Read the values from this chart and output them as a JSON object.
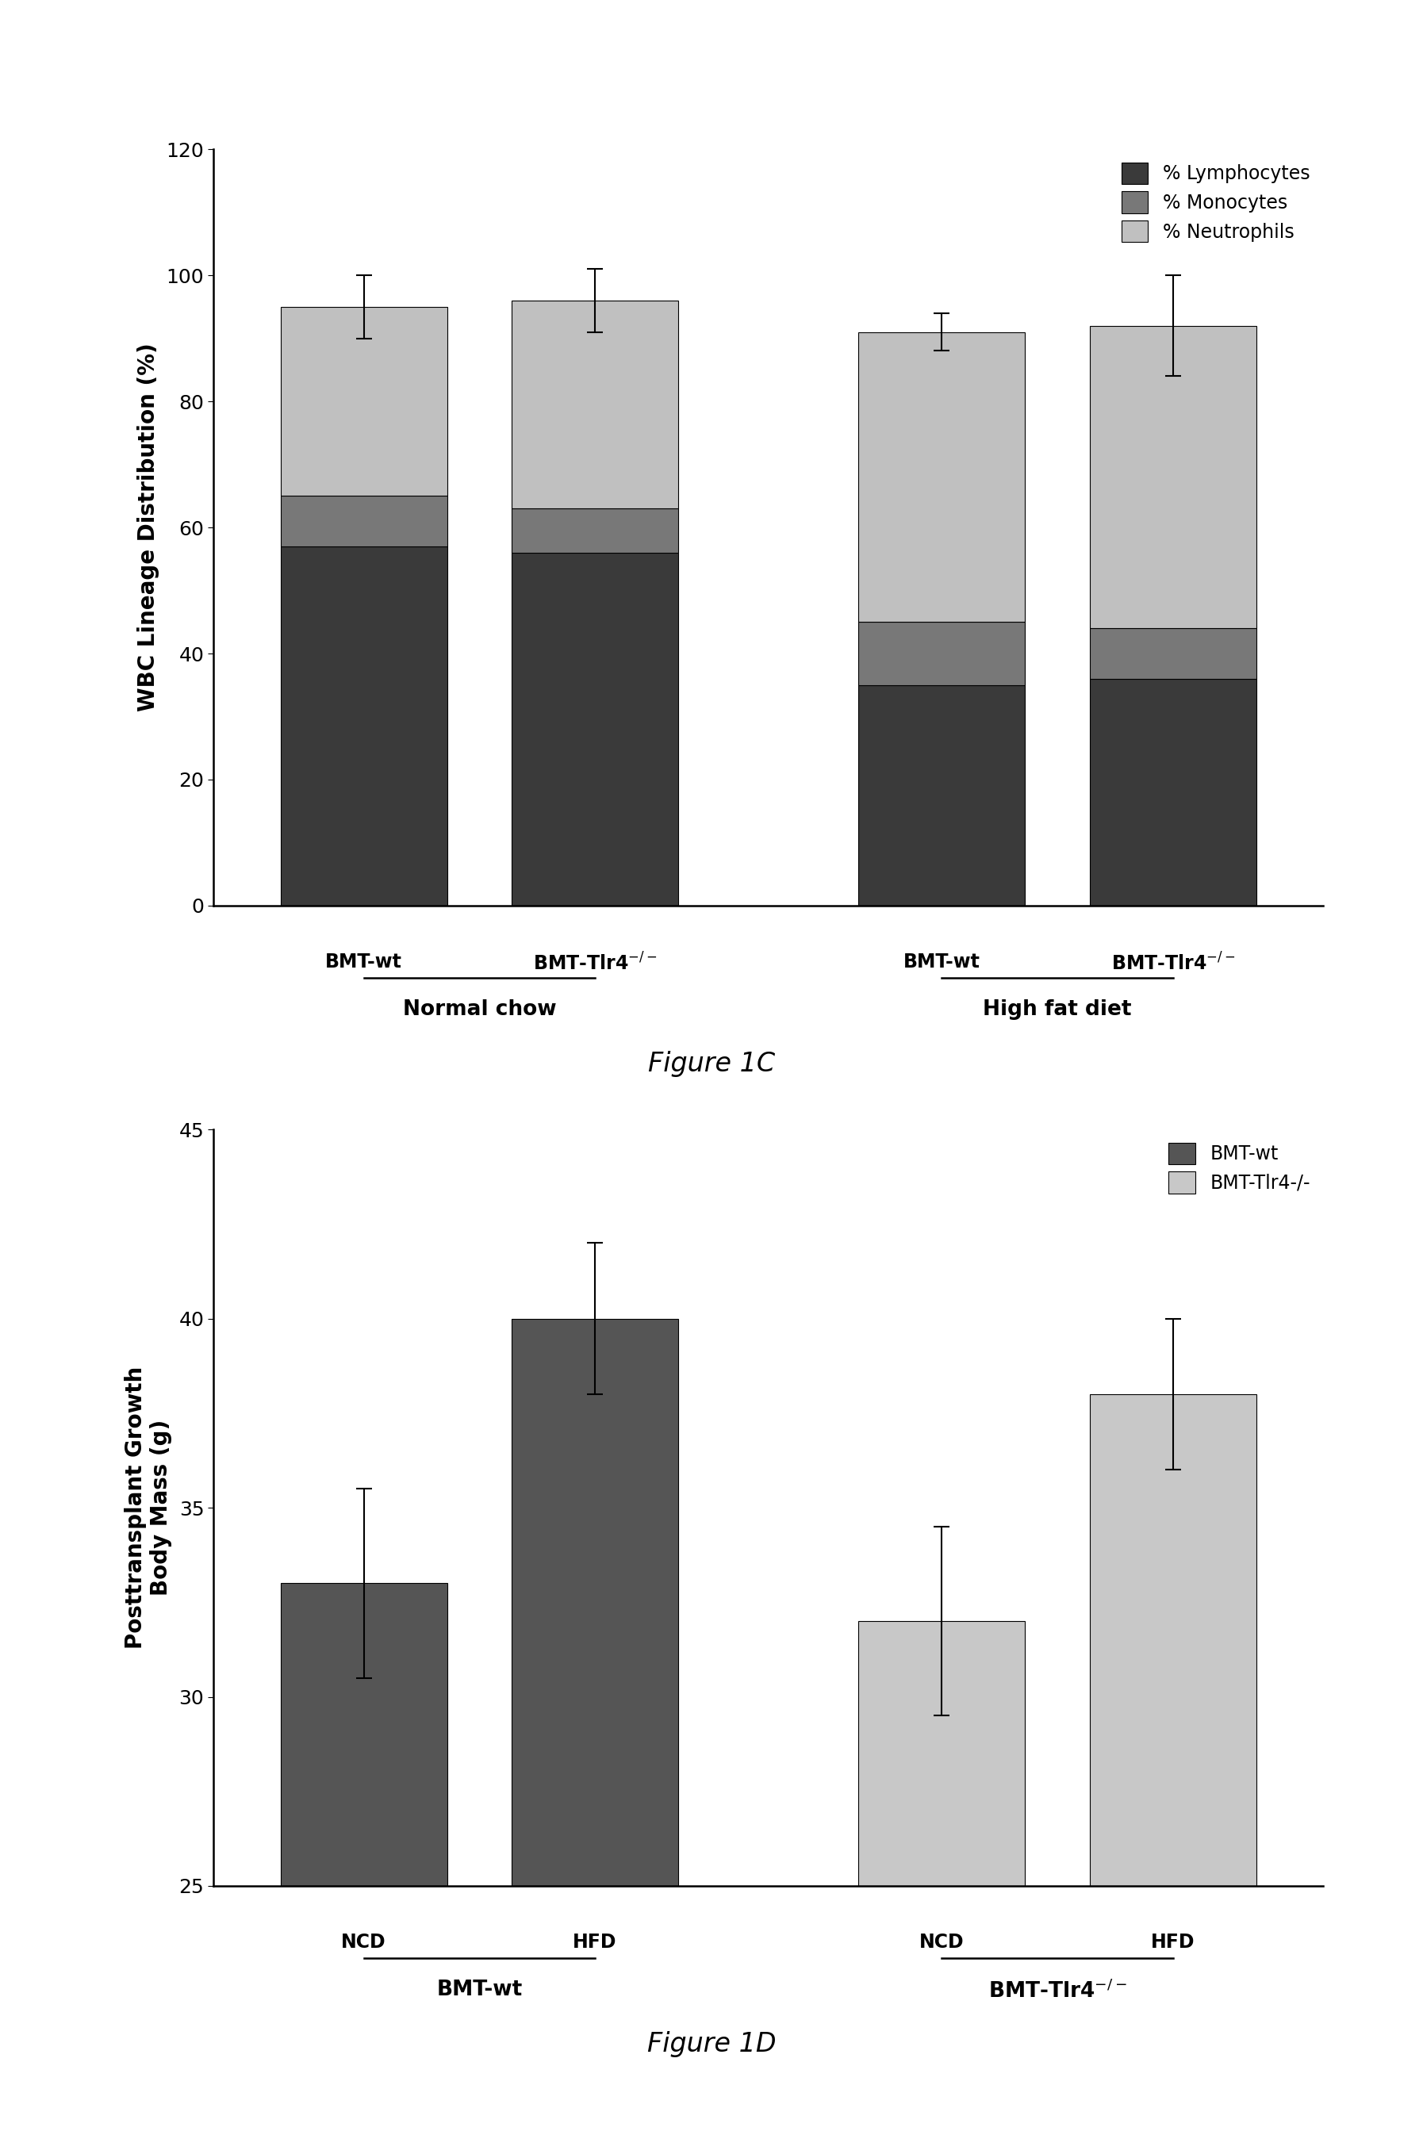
{
  "fig1c": {
    "lymphocytes": [
      57,
      56,
      35,
      36
    ],
    "monocytes": [
      8,
      7,
      10,
      8
    ],
    "neutrophils": [
      30,
      33,
      46,
      48
    ],
    "error_total": [
      5,
      5,
      3,
      8
    ],
    "color_lymph": "#3a3a3a",
    "color_mono": "#787878",
    "color_neut": "#c0c0c0",
    "ylabel": "WBC Lineage Distribution (%)",
    "ylim": [
      0,
      120
    ],
    "yticks": [
      0,
      20,
      40,
      60,
      80,
      100,
      120
    ],
    "bar_labels": [
      "BMT-wt",
      "BMT-Tlr4$^{-/-}$",
      "BMT-wt",
      "BMT-Tlr4$^{-/-}$"
    ],
    "group_labels": [
      "Normal chow",
      "High fat diet"
    ],
    "legend_labels": [
      "% Lymphocytes",
      "% Monocytes",
      "% Neutrophils"
    ],
    "figure_label": "Figure 1C"
  },
  "fig1d": {
    "values": [
      33,
      40,
      32,
      38
    ],
    "errors": [
      2.5,
      2.0,
      2.5,
      2.0
    ],
    "color_dark": "#555555",
    "color_light": "#c8c8c8",
    "ylabel": "Posttransplant Growth\nBody Mass (g)",
    "ylim": [
      25,
      45
    ],
    "yticks": [
      25,
      30,
      35,
      40,
      45
    ],
    "inner_labels": [
      "NCD",
      "HFD",
      "NCD",
      "HFD"
    ],
    "group_labels": [
      "BMT-wt",
      "BMT-Tlr4$^{-/-}$"
    ],
    "legend_labels": [
      "BMT-wt",
      "BMT-Tlr4-/-"
    ],
    "figure_label": "Figure 1D"
  },
  "background_color": "#ffffff",
  "font_size_axis": 20,
  "font_size_tick": 18,
  "font_size_legend": 17,
  "font_size_bar_label": 17,
  "font_size_group_label": 19,
  "font_size_figure": 24
}
